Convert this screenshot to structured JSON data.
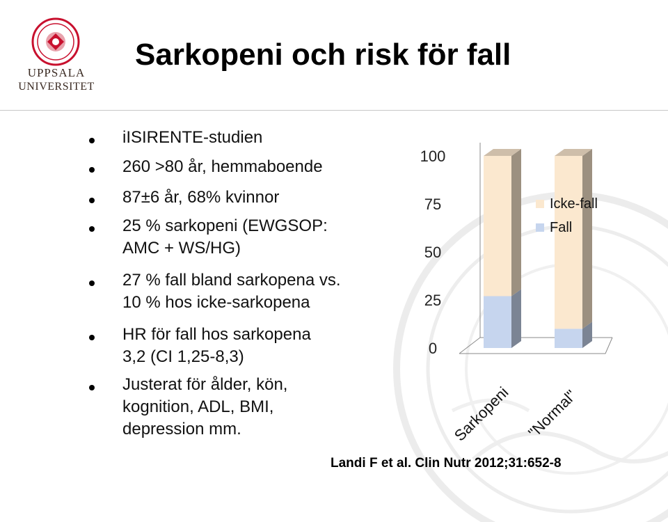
{
  "header": {
    "logo_line1": "UPPSALA",
    "logo_line2": "UNIVERSITET",
    "title": "Sarkopeni och risk för fall"
  },
  "bullets": [
    {
      "lines": [
        "iISIRENTE-studien"
      ]
    },
    {
      "lines": [
        "260 >80 år, hemmaboende"
      ]
    },
    {
      "lines": [
        "87±6 år, 68% kvinnor"
      ]
    },
    {
      "lines": [
        "25 % sarkopeni (EWGSOP:",
        "AMC + WS/HG)"
      ]
    },
    {
      "lines": [
        "27 % fall bland sarkopena vs.",
        "10 % hos icke-sarkopena"
      ]
    },
    {
      "lines": [
        "HR för fall hos sarkopena",
        "3,2 (CI 1,25-8,3)"
      ]
    },
    {
      "lines": [
        "Justerat för ålder, kön,",
        "kognition, ADL, BMI,",
        "depression mm."
      ]
    }
  ],
  "chart_data": {
    "type": "bar",
    "stacked": true,
    "style": "3d",
    "categories": [
      "Sarkopeni",
      "\"Normal\""
    ],
    "series": [
      {
        "name": "Fall",
        "values": [
          27,
          10
        ],
        "color": "#c6d5ee"
      },
      {
        "name": "Icke-fall",
        "values": [
          73,
          90
        ],
        "color": "#fbe8cf"
      }
    ],
    "yticks": [
      "0",
      "25",
      "50",
      "75",
      "100"
    ],
    "ylim": [
      0,
      100
    ],
    "legend": "right",
    "legend_order": [
      "Icke-fall",
      "Fall"
    ],
    "grid": false
  },
  "citation": "Landi  F et al. Clin Nutr 2012;31:652-8",
  "colors": {
    "title_rule": "#c7c7c7",
    "logo_red": "#c8102e",
    "seal_gray": "#ececec"
  }
}
